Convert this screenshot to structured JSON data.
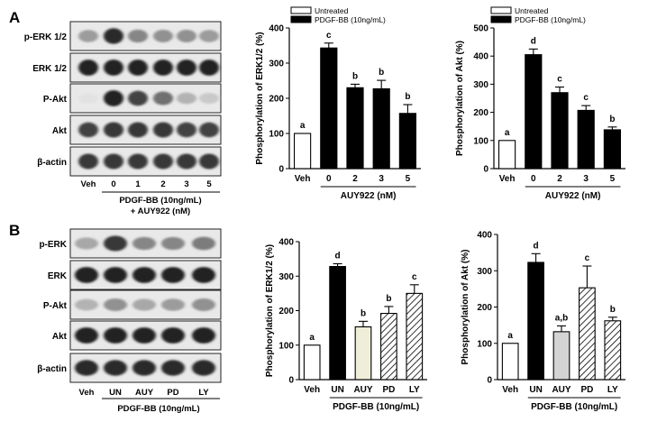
{
  "panels": {
    "A": {
      "label": "A",
      "blot": {
        "rows": [
          "p-ERK 1/2",
          "ERK 1/2",
          "P-Akt",
          "Akt",
          "β-actin"
        ],
        "lane_labels": [
          "Veh",
          "0",
          "1",
          "2",
          "3",
          "5"
        ],
        "caption_lines": [
          "PDGF-BB (10ng/mL)",
          "+ AUY922  (nM)"
        ],
        "intensity": [
          [
            0.35,
            0.85,
            0.45,
            0.4,
            0.4,
            0.35
          ],
          [
            0.9,
            0.9,
            0.9,
            0.9,
            0.9,
            0.9
          ],
          [
            0.04,
            0.9,
            0.75,
            0.55,
            0.25,
            0.15
          ],
          [
            0.75,
            0.8,
            0.8,
            0.8,
            0.75,
            0.75
          ],
          [
            0.8,
            0.8,
            0.8,
            0.8,
            0.8,
            0.8
          ]
        ]
      }
    },
    "B": {
      "label": "B",
      "blot": {
        "rows": [
          "p-ERK",
          "ERK",
          "P-Akt",
          "Akt",
          "β-actin"
        ],
        "lane_labels": [
          "Veh",
          "UN",
          "AUY",
          "PD",
          "LY"
        ],
        "caption_lines": [
          "PDGF-BB (10ng/mL)"
        ],
        "intensity": [
          [
            0.3,
            0.8,
            0.45,
            0.45,
            0.5
          ],
          [
            0.9,
            0.9,
            0.9,
            0.9,
            0.9
          ],
          [
            0.25,
            0.4,
            0.3,
            0.35,
            0.4
          ],
          [
            0.9,
            0.9,
            0.9,
            0.9,
            0.9
          ],
          [
            0.85,
            0.85,
            0.85,
            0.85,
            0.85
          ]
        ]
      }
    }
  },
  "chart_data": [
    {
      "id": "A-ERK",
      "type": "bar",
      "ylabel": "Phosphorylation of ERK1/2 (%)",
      "ylim": [
        0,
        400
      ],
      "yticks": [
        0,
        100,
        200,
        300,
        400
      ],
      "categories": [
        "Veh",
        "0",
        "2",
        "3",
        "5"
      ],
      "values": [
        100,
        343,
        230,
        227,
        157
      ],
      "errors": [
        0,
        14,
        10,
        24,
        25
      ],
      "letters": [
        "a",
        "c",
        "b",
        "b",
        "b"
      ],
      "fills": [
        "white",
        "black",
        "black",
        "black",
        "black"
      ],
      "group_label": "AUY922  (nM)",
      "group_span": [
        1,
        4
      ],
      "legend": [
        {
          "name": "Untreated",
          "fill": "white"
        },
        {
          "name": "PDGF-BB (10ng/mL)",
          "fill": "black"
        }
      ]
    },
    {
      "id": "A-Akt",
      "type": "bar",
      "ylabel": "Phosphorylation of Akt (%)",
      "ylim": [
        0,
        500
      ],
      "yticks": [
        0,
        100,
        200,
        300,
        400,
        500
      ],
      "categories": [
        "Veh",
        "0",
        "2",
        "3",
        "5"
      ],
      "values": [
        100,
        405,
        270,
        207,
        138
      ],
      "errors": [
        0,
        20,
        20,
        17,
        10
      ],
      "letters": [
        "a",
        "d",
        "c",
        "c",
        "b"
      ],
      "fills": [
        "white",
        "black",
        "black",
        "black",
        "black"
      ],
      "group_label": "AUY922  (nM)",
      "group_span": [
        1,
        4
      ],
      "legend": [
        {
          "name": "Untreated",
          "fill": "white"
        },
        {
          "name": "PDGF-BB (10ng/mL)",
          "fill": "black"
        }
      ]
    },
    {
      "id": "B-ERK",
      "type": "bar",
      "ylabel": "Phosphorylation of ERK1/2 (%)",
      "ylim": [
        0,
        400
      ],
      "yticks": [
        0,
        100,
        200,
        300,
        400
      ],
      "categories": [
        "Veh",
        "UN",
        "AUY",
        "PD",
        "LY"
      ],
      "values": [
        100,
        328,
        153,
        192,
        250
      ],
      "errors": [
        0,
        8,
        16,
        20,
        25
      ],
      "letters": [
        "a",
        "d",
        "b",
        "b",
        "c"
      ],
      "fills": [
        "white",
        "black",
        "beige",
        "hatch",
        "hatch"
      ],
      "group_label": "PDGF-BB (10ng/mL)",
      "group_span": [
        1,
        4
      ]
    },
    {
      "id": "B-Akt",
      "type": "bar",
      "ylabel": "Phosphorylation of Akt (%)",
      "ylim": [
        0,
        400
      ],
      "yticks": [
        0,
        100,
        200,
        300,
        400
      ],
      "categories": [
        "Veh",
        "UN",
        "AUY",
        "PD",
        "LY"
      ],
      "values": [
        100,
        323,
        132,
        253,
        162
      ],
      "errors": [
        0,
        24,
        16,
        60,
        10
      ],
      "letters": [
        "a",
        "d",
        "a,b",
        "c",
        "b"
      ],
      "fills": [
        "white",
        "black",
        "lightgray",
        "hatch",
        "hatch"
      ],
      "group_label": "PDGF-BB (10ng/mL)",
      "group_span": [
        1,
        4
      ]
    }
  ]
}
